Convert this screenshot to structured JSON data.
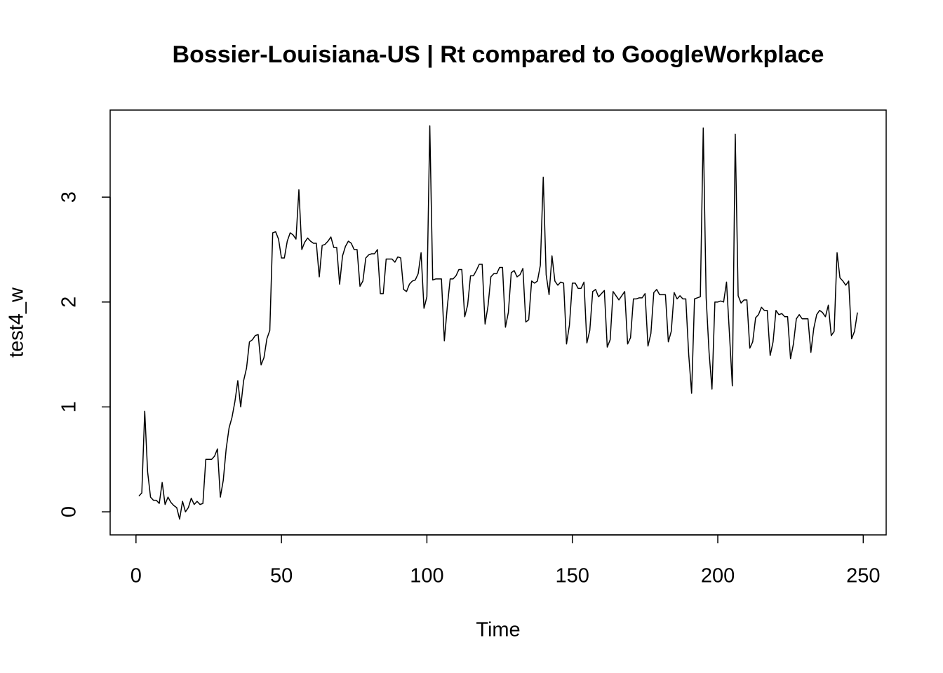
{
  "chart_data": {
    "type": "line",
    "title": "Bossier-Louisiana-US | Rt compared to GoogleWorkplace",
    "x_label": "Time",
    "y_label": "test4_w",
    "color": "#000000",
    "x": [
      1,
      2,
      3,
      4,
      5,
      6,
      7,
      8,
      9,
      10,
      11,
      12,
      13,
      14,
      15,
      16,
      17,
      18,
      19,
      20,
      21,
      22,
      23,
      24,
      25,
      26,
      27,
      28,
      29,
      30,
      31,
      32,
      33,
      34,
      35,
      36,
      37,
      38,
      39,
      40,
      41,
      42,
      43,
      44,
      45,
      46,
      47,
      48,
      49,
      50,
      51,
      52,
      53,
      54,
      55,
      56,
      57,
      58,
      59,
      60,
      61,
      62,
      63,
      64,
      65,
      66,
      67,
      68,
      69,
      70,
      71,
      72,
      73,
      74,
      75,
      76,
      77,
      78,
      79,
      80,
      81,
      82,
      83,
      84,
      85,
      86,
      87,
      88,
      89,
      90,
      91,
      92,
      93,
      94,
      95,
      96,
      97,
      98,
      99,
      100,
      101,
      102,
      103,
      104,
      105,
      106,
      107,
      108,
      109,
      110,
      111,
      112,
      113,
      114,
      115,
      116,
      117,
      118,
      119,
      120,
      121,
      122,
      123,
      124,
      125,
      126,
      127,
      128,
      129,
      130,
      131,
      132,
      133,
      134,
      135,
      136,
      137,
      138,
      139,
      140,
      141,
      142,
      143,
      144,
      145,
      146,
      147,
      148,
      149,
      150,
      151,
      152,
      153,
      154,
      155,
      156,
      157,
      158,
      159,
      160,
      161,
      162,
      163,
      164,
      165,
      166,
      167,
      168,
      169,
      170,
      171,
      172,
      173,
      174,
      175,
      176,
      177,
      178,
      179,
      180,
      181,
      182,
      183,
      184,
      185,
      186,
      187,
      188,
      189,
      190,
      191,
      192,
      193,
      194,
      195,
      196,
      197,
      198,
      199,
      200,
      201,
      202,
      203,
      204,
      205,
      206,
      207,
      208,
      209,
      210,
      211,
      212,
      213,
      214,
      215,
      216,
      217,
      218,
      219,
      220,
      221,
      222,
      223,
      224,
      225,
      226,
      227,
      228,
      229,
      230,
      231,
      232,
      233,
      234,
      235,
      236,
      237,
      238,
      239,
      240,
      241,
      242,
      243,
      244,
      245,
      246,
      247,
      248
    ],
    "values": [
      0.15,
      0.18,
      0.96,
      0.38,
      0.14,
      0.11,
      0.11,
      0.08,
      0.28,
      0.07,
      0.14,
      0.09,
      0.06,
      0.04,
      -0.07,
      0.1,
      0.0,
      0.04,
      0.13,
      0.07,
      0.1,
      0.07,
      0.08,
      0.5,
      0.5,
      0.5,
      0.53,
      0.6,
      0.14,
      0.3,
      0.6,
      0.8,
      0.9,
      1.05,
      1.25,
      1.0,
      1.25,
      1.37,
      1.62,
      1.64,
      1.68,
      1.69,
      1.4,
      1.47,
      1.65,
      1.73,
      2.66,
      2.67,
      2.6,
      2.42,
      2.42,
      2.58,
      2.66,
      2.64,
      2.6,
      3.07,
      2.5,
      2.57,
      2.61,
      2.58,
      2.56,
      2.56,
      2.24,
      2.54,
      2.55,
      2.58,
      2.62,
      2.52,
      2.52,
      2.17,
      2.44,
      2.53,
      2.58,
      2.56,
      2.5,
      2.5,
      2.15,
      2.2,
      2.42,
      2.45,
      2.46,
      2.46,
      2.5,
      2.08,
      2.08,
      2.41,
      2.41,
      2.41,
      2.38,
      2.43,
      2.42,
      2.12,
      2.1,
      2.17,
      2.2,
      2.21,
      2.27,
      2.47,
      1.94,
      2.05,
      3.68,
      2.21,
      2.22,
      2.22,
      2.22,
      1.63,
      1.95,
      2.22,
      2.22,
      2.25,
      2.31,
      2.31,
      1.86,
      1.97,
      2.25,
      2.25,
      2.3,
      2.36,
      2.36,
      1.79,
      1.96,
      2.24,
      2.27,
      2.27,
      2.33,
      2.33,
      1.76,
      1.9,
      2.28,
      2.3,
      2.24,
      2.26,
      2.32,
      1.81,
      1.83,
      2.2,
      2.18,
      2.2,
      2.35,
      3.19,
      2.26,
      2.07,
      2.44,
      2.2,
      2.16,
      2.19,
      2.18,
      1.6,
      1.78,
      2.18,
      2.18,
      2.13,
      2.13,
      2.19,
      1.61,
      1.73,
      2.1,
      2.12,
      2.05,
      2.08,
      2.11,
      1.57,
      1.64,
      2.1,
      2.06,
      2.02,
      2.06,
      2.1,
      1.6,
      1.66,
      2.03,
      2.03,
      2.04,
      2.04,
      2.08,
      1.58,
      1.7,
      2.09,
      2.12,
      2.07,
      2.07,
      2.07,
      1.62,
      1.72,
      2.09,
      2.03,
      2.06,
      2.03,
      2.03,
      1.5,
      1.13,
      2.03,
      2.04,
      2.05,
      3.66,
      2.04,
      1.52,
      1.17,
      2.0,
      2.0,
      2.01,
      2.0,
      2.19,
      1.7,
      1.2,
      3.6,
      2.06,
      1.99,
      2.02,
      2.02,
      1.56,
      1.62,
      1.85,
      1.88,
      1.95,
      1.92,
      1.92,
      1.49,
      1.62,
      1.92,
      1.88,
      1.89,
      1.86,
      1.86,
      1.46,
      1.6,
      1.84,
      1.88,
      1.84,
      1.84,
      1.84,
      1.52,
      1.75,
      1.88,
      1.92,
      1.9,
      1.86,
      1.97,
      1.68,
      1.72,
      2.47,
      2.23,
      2.2,
      2.16,
      2.2,
      1.65,
      1.72,
      1.9
    ],
    "xlim": [
      -8.88,
      257.88
    ],
    "ylim": [
      -0.22,
      3.83
    ],
    "xticks": [
      0,
      50,
      100,
      150,
      200,
      250
    ],
    "yticks": [
      0,
      1,
      2,
      3
    ]
  }
}
